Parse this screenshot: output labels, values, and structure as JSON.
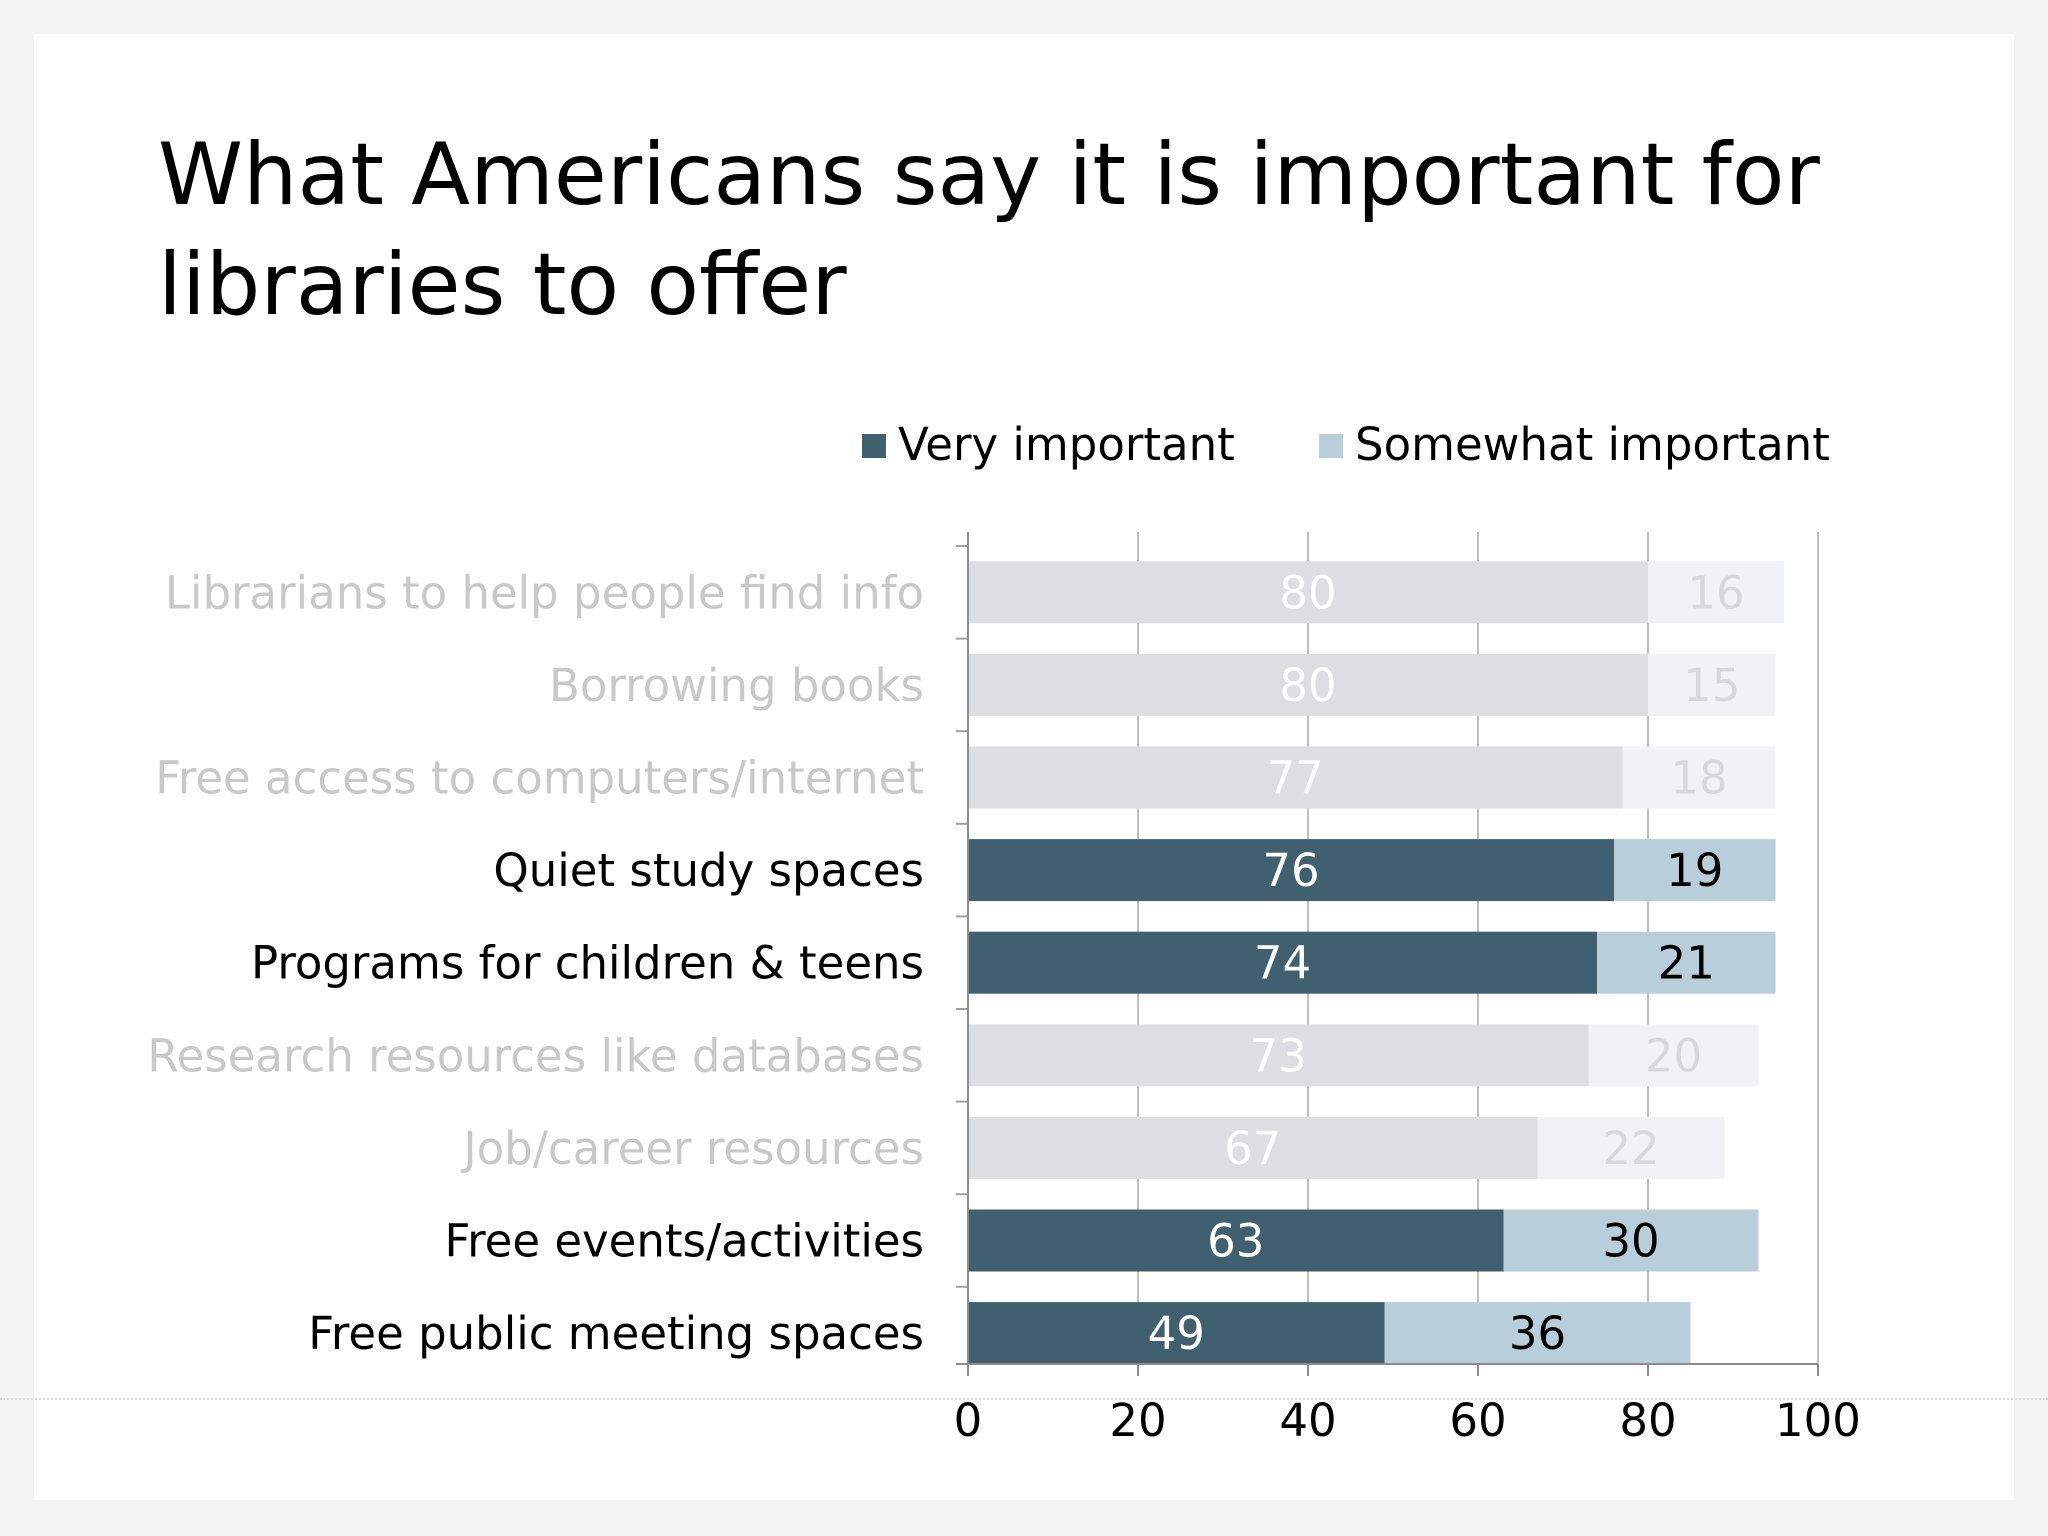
{
  "title": "What Americans say it is important for libraries to offer",
  "colors": {
    "very": "#41606f",
    "somewhat": "#b9cedb",
    "very_faded": "#dcdee2",
    "somewhat_faded": "#f1f2f5",
    "label": "#000000",
    "label_faded": "#c8c8c8"
  },
  "legend": [
    {
      "label": "Very important",
      "color": "#41606f"
    },
    {
      "label": "Somewhat important",
      "color": "#b9cedb"
    }
  ],
  "chart_data": {
    "type": "bar",
    "orientation": "horizontal",
    "stacked": true,
    "categories": [
      "Librarians to help people find info",
      "Borrowing books",
      "Free access to computers/internet",
      "Quiet study spaces",
      "Programs for children &  teens",
      "Research resources like databases",
      "Job/career resources",
      "Free events/activities",
      "Free public meeting spaces"
    ],
    "highlighted": [
      false,
      false,
      false,
      true,
      true,
      false,
      false,
      true,
      true
    ],
    "series": [
      {
        "name": "Very important",
        "values": [
          80,
          80,
          77,
          76,
          74,
          73,
          67,
          63,
          49
        ]
      },
      {
        "name": "Somewhat important",
        "values": [
          16,
          15,
          18,
          19,
          21,
          20,
          22,
          30,
          36
        ]
      }
    ],
    "xlim": [
      0,
      100
    ],
    "xticks": [
      0,
      20,
      40,
      60,
      80,
      100
    ],
    "grid": true,
    "legend_position": "top-right"
  }
}
